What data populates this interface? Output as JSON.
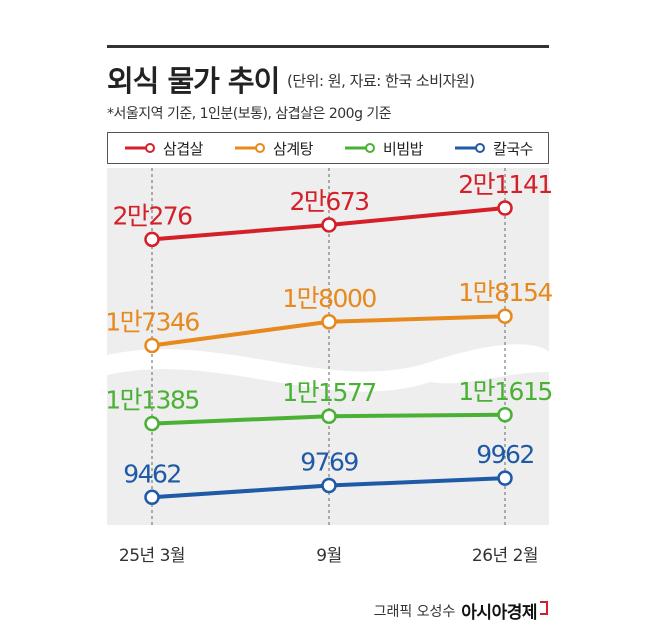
{
  "header": {
    "title": "외식 물가 추이",
    "subtitle": "(단위: 원, 자료: 한국 소비자원)",
    "note": "*서울지역 기준, 1인분(보통), 삼겹살은 200g 기준"
  },
  "footer": {
    "credit": "그래픽 오성수",
    "brand": "아시아경제"
  },
  "chart_data": {
    "type": "line",
    "title": "외식 물가 추이",
    "subtitle": "(단위: 원, 자료: 한국 소비자원)",
    "x": [
      "25년 3월",
      "9월",
      "26년 2월"
    ],
    "axis_break": true,
    "legend": "top",
    "series": [
      {
        "name": "삼겹살",
        "color": "#d32029",
        "values": [
          20276,
          20673,
          21141
        ],
        "labels": [
          "2만276",
          "2만673",
          "2만1141"
        ]
      },
      {
        "name": "삼계탕",
        "color": "#e8891e",
        "values": [
          17346,
          18000,
          18154
        ],
        "labels": [
          "1만7346",
          "1만8000",
          "1만8154"
        ]
      },
      {
        "name": "비빔밥",
        "color": "#4ab135",
        "values": [
          11385,
          11577,
          11615
        ],
        "labels": [
          "1만1385",
          "1만1577",
          "1만1615"
        ]
      },
      {
        "name": "칼국수",
        "color": "#1f5aa6",
        "values": [
          9462,
          9769,
          9962
        ],
        "labels": [
          "9462",
          "9769",
          "9962"
        ]
      }
    ]
  }
}
